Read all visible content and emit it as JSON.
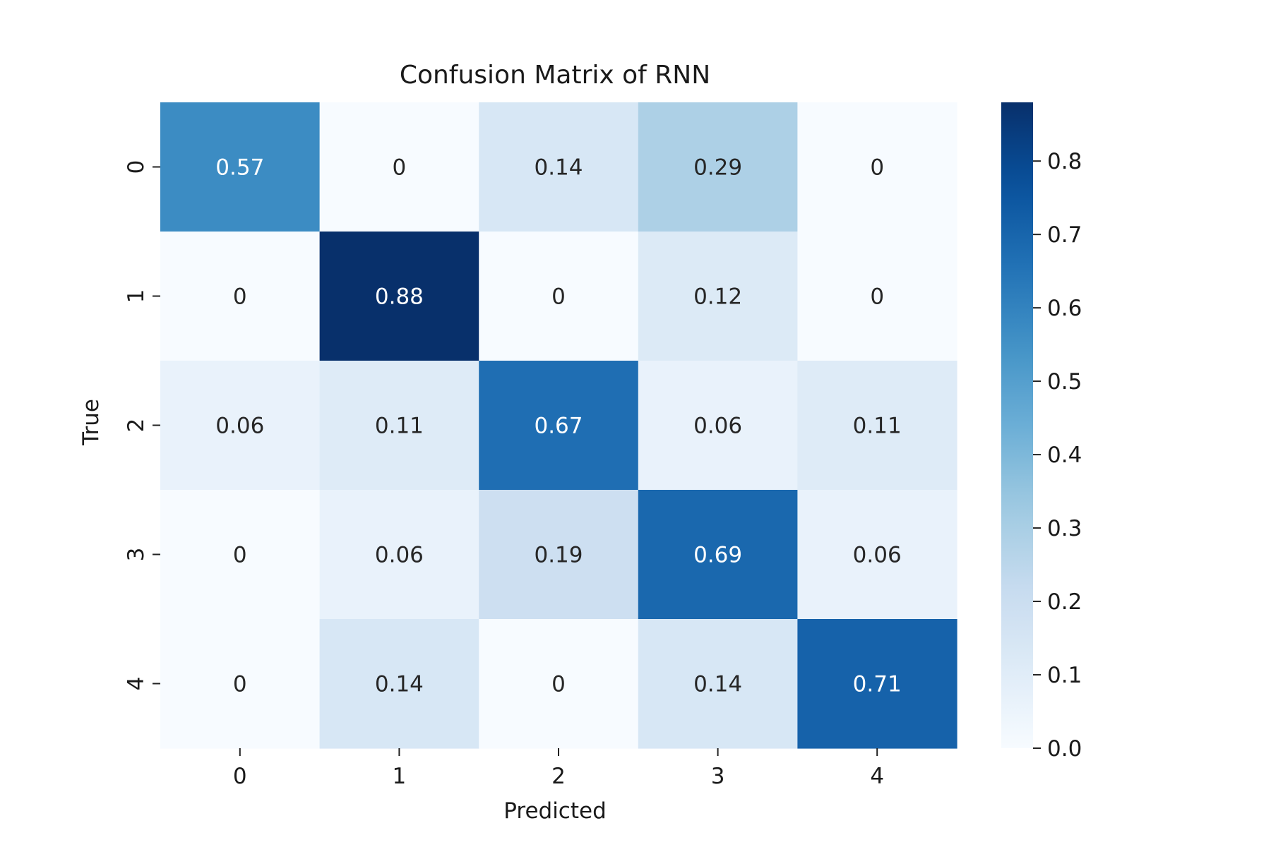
{
  "chart_data": {
    "type": "heatmap",
    "title": "Confusion Matrix of RNN",
    "xlabel": "Predicted",
    "ylabel": "True",
    "x_categories": [
      "0",
      "1",
      "2",
      "3",
      "4"
    ],
    "y_categories": [
      "0",
      "1",
      "2",
      "3",
      "4"
    ],
    "matrix": [
      [
        0.57,
        0,
        0.14,
        0.29,
        0
      ],
      [
        0,
        0.88,
        0,
        0.12,
        0
      ],
      [
        0.06,
        0.11,
        0.67,
        0.06,
        0.11
      ],
      [
        0,
        0.06,
        0.19,
        0.69,
        0.06
      ],
      [
        0,
        0.14,
        0,
        0.14,
        0.71
      ]
    ],
    "colormap": "Blues",
    "colorbar": {
      "range": [
        0,
        0.88
      ],
      "ticks": [
        0.0,
        0.1,
        0.2,
        0.3,
        0.4,
        0.5,
        0.6,
        0.7,
        0.8
      ],
      "tick_labels": [
        "0.0",
        "0.1",
        "0.2",
        "0.3",
        "0.4",
        "0.5",
        "0.6",
        "0.7",
        "0.8"
      ]
    },
    "grid": false,
    "annotated": true
  }
}
